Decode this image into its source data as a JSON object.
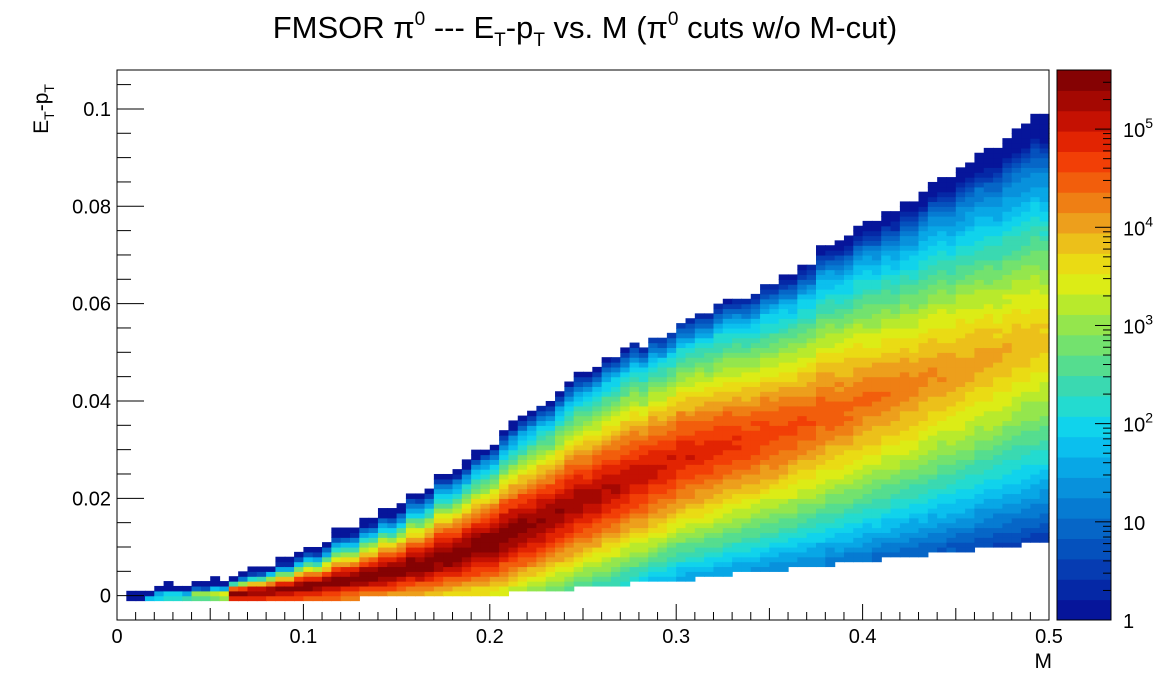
{
  "title": {
    "t1": "FMSOR π",
    "s1": "0",
    "t2": " --- E",
    "s2": "T",
    "t3": "-p",
    "s3": "T",
    "t4": " vs. M (π",
    "s4": "0",
    "t5": " cuts w/o M-cut)"
  },
  "chart_data": {
    "type": "heatmap",
    "xlabel": "M",
    "ylabel_parts": {
      "a": "E",
      "b": "T",
      "c": "-p",
      "d": "T"
    },
    "xlim": [
      0,
      0.5
    ],
    "ylim": [
      -0.005,
      0.108
    ],
    "x_ticks": [
      {
        "v": 0,
        "label": "0"
      },
      {
        "v": 0.1,
        "label": "0.1"
      },
      {
        "v": 0.2,
        "label": "0.2"
      },
      {
        "v": 0.3,
        "label": "0.3"
      },
      {
        "v": 0.4,
        "label": "0.4"
      },
      {
        "v": 0.5,
        "label": "0.5"
      }
    ],
    "y_ticks": [
      {
        "v": 0,
        "label": "0"
      },
      {
        "v": 0.02,
        "label": "0.02"
      },
      {
        "v": 0.04,
        "label": "0.04"
      },
      {
        "v": 0.06,
        "label": "0.06"
      },
      {
        "v": 0.08,
        "label": "0.08"
      },
      {
        "v": 0.1,
        "label": "0.1"
      }
    ],
    "z_scale": "log",
    "zlim": [
      1,
      400000
    ],
    "z_ticks": [
      {
        "v": 1,
        "label": "1"
      },
      {
        "v": 10,
        "label": "10"
      },
      {
        "v": 100,
        "label": "10",
        "exp": "2"
      },
      {
        "v": 1000,
        "label": "10",
        "exp": "3"
      },
      {
        "v": 10000,
        "label": "10",
        "exp": "4"
      },
      {
        "v": 100000,
        "label": "10",
        "exp": "5"
      }
    ],
    "palette": [
      "#06159a",
      "#0528a6",
      "#063cb2",
      "#0551bd",
      "#0666c7",
      "#067bd2",
      "#0891dc",
      "#08a7e6",
      "#0bbfee",
      "#10d3ec",
      "#23dbd0",
      "#3ad9b1",
      "#55dd8f",
      "#73e26e",
      "#94e64d",
      "#b8ea2c",
      "#dcec16",
      "#eadb14",
      "#ecc01a",
      "#ed9f1c",
      "#ef7f14",
      "#f25e0c",
      "#f23f06",
      "#e22402",
      "#c51102",
      "#a40802",
      "#850203"
    ],
    "grid": false,
    "upper_edge": [
      [
        0.0,
        0.0
      ],
      [
        0.05,
        0.003
      ],
      [
        0.1,
        0.009
      ],
      [
        0.15,
        0.019
      ],
      [
        0.2,
        0.031
      ],
      [
        0.25,
        0.046
      ],
      [
        0.3,
        0.055
      ],
      [
        0.35,
        0.064
      ],
      [
        0.4,
        0.076
      ],
      [
        0.45,
        0.087
      ],
      [
        0.5,
        0.1
      ]
    ],
    "lower_edge": [
      [
        0.0,
        0.0
      ],
      [
        0.1,
        0.0
      ],
      [
        0.2,
        0.001
      ],
      [
        0.3,
        0.004
      ],
      [
        0.4,
        0.008
      ],
      [
        0.5,
        0.012
      ]
    ],
    "peak_region": {
      "m": [
        0.1,
        0.23
      ],
      "et_pt": [
        0.002,
        0.006
      ],
      "counts": 400000
    }
  }
}
